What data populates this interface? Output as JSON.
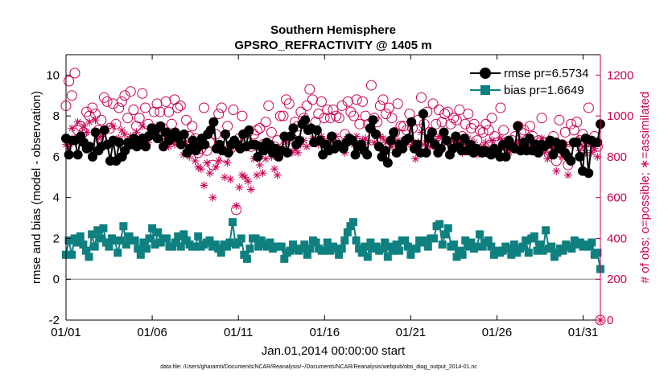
{
  "chart_data": {
    "type": "line",
    "title": "Southern Hemisphere",
    "subtitle": "GPSRO_REFRACTIVITY @ 1405 m",
    "xlabel": "Jan.01,2014 00:00:00 start",
    "ylabel_left": "rmse and bias (model - observation)",
    "ylabel_right": "# of obs: o=possible; ∗=assimilated",
    "footnote": "data file: /Users/gharamti/Documents/NCAR/Reanalysis/~/Documents/NCAR/Reanalysis/webpub/obs_diag_output_2014-01.nc",
    "xlim": [
      0,
      31
    ],
    "ylim_left": [
      -2,
      11
    ],
    "ylim_right": [
      0,
      1300
    ],
    "x_ticks": [
      0,
      5,
      10,
      15,
      20,
      25,
      30
    ],
    "x_tick_labels": [
      "01/01",
      "01/06",
      "01/11",
      "01/16",
      "01/21",
      "01/26",
      "01/31"
    ],
    "y_left_ticks": [
      -2,
      0,
      2,
      4,
      6,
      8,
      10
    ],
    "y_left_tick_labels": [
      "-2",
      "0",
      "2",
      "4",
      "6",
      "8",
      "10"
    ],
    "y_right_ticks": [
      0,
      200,
      400,
      600,
      800,
      1000,
      1200
    ],
    "y_right_tick_labels": [
      "0",
      "200",
      "400",
      "600",
      "800",
      "1000",
      "1200"
    ],
    "colors": {
      "rmse": "#000000",
      "bias": "#0f8080",
      "obs": "#cc0055",
      "zero_line": "#aaaaaa"
    },
    "legend_position": "top-right",
    "series": [
      {
        "name": "rmse pr=6.5734",
        "axis": "left",
        "marker": "circle",
        "values": [
          6.9,
          6.1,
          6.8,
          6.8,
          6.1,
          7.0,
          6.7,
          6.4,
          6.5,
          6.0,
          7.2,
          6.3,
          6.5,
          7.3,
          6.6,
          5.8,
          6.8,
          5.8,
          6.7,
          6.0,
          6.3,
          6.7,
          6.6,
          6.9,
          6.5,
          6.6,
          6.9,
          6.5,
          7.0,
          7.4,
          7.3,
          6.9,
          7.5,
          6.5,
          7.2,
          6.8,
          7.0,
          7.2,
          6.9,
          6.6,
          7.1,
          6.2,
          6.4,
          6.8,
          6.3,
          6.5,
          6.9,
          6.6,
          7.1,
          7.3,
          7.7,
          6.4,
          6.6,
          6.3,
          7.1,
          6.2,
          6.6,
          6.8,
          6.6,
          6.4,
          7.1,
          6.5,
          7.3,
          6.6,
          6.6,
          6.0,
          6.5,
          6.3,
          6.7,
          6.6,
          6.2,
          6.4,
          6.0,
          6.3,
          7.0,
          6.2,
          7.0,
          7.4,
          6.6,
          6.8,
          7.6,
          7.8,
          7.3,
          7.4,
          6.7,
          7.3,
          6.8,
          6.1,
          6.6,
          6.3,
          7.0,
          6.4,
          6.6,
          6.5,
          6.4,
          6.7,
          6.9,
          6.8,
          6.1,
          6.5,
          6.6,
          6.3,
          6.1,
          7.4,
          7.8,
          7.1,
          6.5,
          6.0,
          6.3,
          5.7,
          6.8,
          7.2,
          6.2,
          6.6,
          6.4,
          6.8,
          6.9,
          7.7,
          6.4,
          6.6,
          6.2,
          8.1,
          6.2,
          6.9,
          7.2,
          6.6,
          6.2,
          6.4,
          7.2,
          6.8,
          6.1,
          6.4,
          7.0,
          6.5,
          6.3,
          6.9,
          6.3,
          6.6,
          6.2,
          6.4,
          6.3,
          6.2,
          6.3,
          6.2,
          6.1,
          6.4,
          6.3,
          6.0,
          6.6,
          6.0,
          6.8,
          6.5,
          6.4,
          7.5,
          6.3,
          6.7,
          6.3,
          6.9,
          6.3,
          6.6,
          6.2,
          6.6,
          6.5,
          6.6,
          6.8,
          6.1,
          6.7,
          6.4,
          6.6,
          6.2,
          6.0,
          5.8,
          6.7,
          6.7,
          6.0,
          5.3,
          6.9,
          5.2,
          6.8,
          6.7,
          6.7,
          7.6
        ]
      },
      {
        "name": "bias pr=1.6649",
        "axis": "left",
        "marker": "square",
        "values": [
          1.2,
          1.9,
          1.2,
          2.0,
          1.8,
          2.1,
          1.7,
          1.4,
          1.1,
          2.2,
          1.6,
          2.4,
          2.0,
          2.5,
          1.8,
          1.6,
          2.0,
          1.9,
          1.3,
          1.9,
          2.6,
          1.7,
          2.1,
          1.9,
          1.9,
          1.5,
          1.2,
          1.8,
          1.5,
          2.0,
          2.5,
          1.7,
          2.3,
          1.8,
          2.0,
          2.0,
          1.6,
          1.6,
          1.8,
          2.1,
          1.6,
          2.2,
          1.9,
          1.7,
          1.6,
          1.6,
          2.1,
          1.6,
          1.7,
          1.8,
          1.9,
          1.6,
          1.7,
          1.5,
          1.3,
          1.7,
          1.6,
          1.8,
          2.8,
          1.7,
          1.8,
          2.0,
          1.2,
          1.0,
          1.5,
          2.0,
          2.0,
          1.6,
          1.9,
          1.7,
          1.6,
          1.8,
          1.5,
          1.6,
          1.6,
          1.6,
          1.0,
          1.3,
          1.4,
          1.7,
          1.5,
          1.4,
          1.5,
          1.7,
          1.2,
          1.5,
          1.9,
          1.8,
          1.5,
          1.4,
          1.4,
          1.8,
          1.4,
          1.6,
          1.5,
          1.2,
          1.5,
          1.9,
          2.3,
          2.6,
          2.8,
          1.9,
          1.5,
          1.3,
          1.6,
          1.1,
          1.8,
          1.5,
          1.6,
          1.4,
          1.5,
          1.8,
          1.1,
          1.6,
          1.4,
          1.7,
          1.4,
          1.9,
          1.9,
          1.6,
          1.2,
          1.5,
          1.5,
          1.9,
          1.8,
          1.9,
          1.6,
          2.0,
          2.0,
          2.6,
          2.7,
          1.7,
          2.2,
          2.5,
          1.6,
          1.7,
          1.1,
          1.4,
          1.2,
          1.9,
          1.6,
          1.8,
          1.5,
          1.6,
          2.2,
          1.6,
          1.8,
          1.9,
          1.6,
          1.2,
          1.4,
          1.3,
          1.4,
          1.6,
          1.5,
          1.2,
          1.7,
          1.3,
          1.5,
          1.6,
          1.9,
          1.3,
          2.0,
          2.1,
          1.4,
          1.7,
          1.4,
          2.4,
          1.5,
          1.6,
          1.1,
          1.3,
          1.5,
          1.4,
          1.7,
          1.6,
          1.5,
          1.9,
          1.7,
          1.8,
          1.6,
          1.7,
          1.6,
          1.8,
          1.2,
          1.3,
          0.5
        ]
      },
      {
        "name": "possible",
        "axis": "right",
        "marker": "open-circle",
        "values": [
          1050,
          1170,
          1100,
          1210,
          930,
          950,
          920,
          1020,
          1000,
          1040,
          1010,
          930,
          980,
          1090,
          1070,
          940,
          1060,
          960,
          1040,
          1070,
          1100,
          990,
          1120,
          1030,
          950,
          990,
          1110,
          1040,
          960,
          910,
          1020,
          1060,
          1020,
          940,
          1070,
          1020,
          960,
          1080,
          1040,
          1050,
          880,
          980,
          900,
          950,
          890,
          820,
          840,
          1040,
          830,
          870,
          760,
          910,
          1010,
          1040,
          800,
          950,
          840,
          1030,
          540,
          890,
          1000,
          880,
          920,
          850,
          910,
          930,
          940,
          860,
          970,
          1050,
          920,
          850,
          880,
          1000,
          1000,
          1080,
          1060,
          890,
          970,
          950,
          1020,
          990,
          1050,
          1130,
          1080,
          970,
          1010,
          1070,
          990,
          1030,
          990,
          1030,
          1000,
          990,
          1050,
          910,
          1070,
          1020,
          1000,
          1080,
          960,
          1070,
          1000,
          960,
          1150,
          990,
          970,
          1050,
          1080,
          1010,
          1040,
          990,
          920,
          1060,
          950,
          950,
          930,
          1010,
          940,
          850,
          980,
          1090,
          960,
          1020,
          920,
          1060,
          960,
          1030,
          970,
          1010,
          1020,
          960,
          990,
          980,
          1030,
          900,
          960,
          1010,
          940,
          960,
          880,
          930,
          920,
          960,
          930,
          990,
          900,
          870,
          1040,
          930,
          870,
          870,
          880,
          900,
          950,
          920,
          930,
          870,
          950,
          900,
          860,
          880,
          990,
          870,
          850,
          870,
          900,
          780,
          980,
          860,
          920,
          760,
          960,
          930,
          970,
          880,
          910,
          870,
          1040,
          870,
          900,
          850,
          0
        ]
      },
      {
        "name": "assimilated",
        "axis": "right",
        "marker": "asterisk",
        "values": [
          860,
          850,
          940,
          890,
          970,
          900,
          950,
          920,
          970,
          850,
          980,
          890,
          900,
          860,
          940,
          860,
          950,
          870,
          890,
          930,
          910,
          870,
          900,
          860,
          920,
          880,
          950,
          900,
          870,
          910,
          900,
          950,
          890,
          870,
          900,
          850,
          880,
          860,
          900,
          870,
          810,
          860,
          800,
          830,
          780,
          750,
          740,
          660,
          770,
          720,
          600,
          750,
          780,
          850,
          700,
          770,
          690,
          850,
          560,
          650,
          710,
          700,
          680,
          640,
          790,
          710,
          760,
          720,
          790,
          840,
          800,
          740,
          710,
          820,
          840,
          870,
          890,
          820,
          840,
          820,
          860,
          880,
          850,
          940,
          890,
          870,
          860,
          900,
          880,
          870,
          890,
          870,
          900,
          870,
          850,
          820,
          900,
          890,
          860,
          900,
          870,
          880,
          890,
          870,
          920,
          870,
          860,
          900,
          890,
          870,
          880,
          850,
          820,
          880,
          860,
          870,
          860,
          890,
          870,
          790,
          870,
          920,
          860,
          880,
          850,
          910,
          880,
          900,
          890,
          870,
          880,
          860,
          880,
          870,
          880,
          820,
          860,
          890,
          860,
          870,
          810,
          840,
          850,
          870,
          840,
          880,
          850,
          830,
          890,
          850,
          830,
          820,
          840,
          850,
          870,
          850,
          860,
          830,
          860,
          850,
          820,
          830,
          890,
          820,
          790,
          810,
          840,
          730,
          860,
          800,
          860,
          710,
          860,
          870,
          880,
          830,
          850,
          820,
          870,
          820,
          840,
          800,
          0
        ]
      }
    ]
  }
}
